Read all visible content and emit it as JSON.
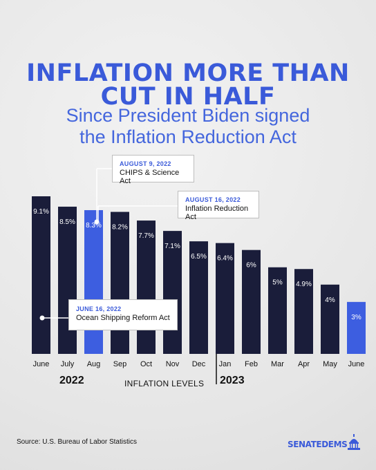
{
  "header": {
    "title_line1": "INFLATION MORE THAN",
    "title_line2": "CUT IN HALF",
    "subtitle_line1": "Since President Biden signed",
    "subtitle_line2": "the Inflation Reduction Act"
  },
  "colors": {
    "title": "#3a5ad9",
    "bar_dark": "#1a1d3a",
    "bar_highlight": "#3d5ee0",
    "background": "#ebebeb"
  },
  "chart_data": {
    "type": "bar",
    "title": "INFLATION MORE THAN CUT IN HALF",
    "xlabel": "INFLATION LEVELS",
    "ylabel": "",
    "categories": [
      "June",
      "July",
      "Aug",
      "Sep",
      "Oct",
      "Nov",
      "Dec",
      "Jan",
      "Feb",
      "Mar",
      "Apr",
      "May",
      "June"
    ],
    "values": [
      9.1,
      8.5,
      8.3,
      8.2,
      7.7,
      7.1,
      6.5,
      6.4,
      6,
      5,
      4.9,
      4,
      3
    ],
    "value_labels": [
      "9.1%",
      "8.5%",
      "8.3%",
      "8.2%",
      "7.7%",
      "7.1%",
      "6.5%",
      "6.4%",
      "6%",
      "5%",
      "4.9%",
      "4%",
      "3%"
    ],
    "highlighted": [
      2,
      12
    ],
    "years": [
      "2022",
      "2023"
    ],
    "ylim": [
      0,
      9.1
    ],
    "grid": false
  },
  "callouts": [
    {
      "date": "AUGUST 9,  2022",
      "act": "CHIPS & Science Act"
    },
    {
      "date": "AUGUST 16,  2022",
      "act": "Inflation Reduction Act"
    },
    {
      "date": "JUNE 16, 2022",
      "act": "Ocean Shipping Reform Act"
    }
  ],
  "footer": {
    "source": "Source: U.S. Bureau of Labor Statistics",
    "logo": "SENATEDEMS"
  }
}
